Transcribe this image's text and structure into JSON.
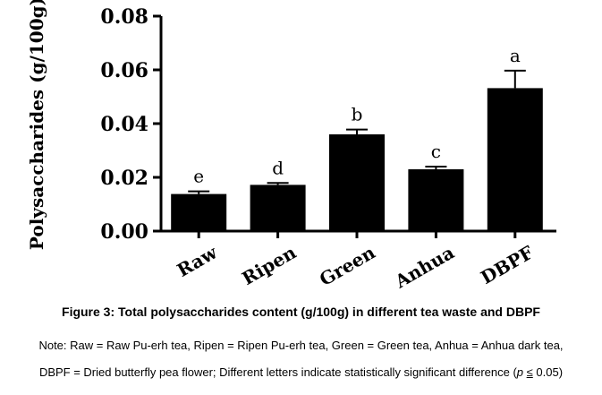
{
  "chart_data": {
    "type": "bar",
    "title": "",
    "ylabel": "Polysaccharides (g/100g)",
    "xlabel": "",
    "categories": [
      "Raw",
      "Ripen",
      "Green",
      "Anhua",
      "DBPF"
    ],
    "values": [
      0.0138,
      0.0172,
      0.036,
      0.023,
      0.0532
    ],
    "errors": [
      0.001,
      0.0007,
      0.0018,
      0.001,
      0.0065
    ],
    "significance": [
      "e",
      "d",
      "b",
      "c",
      "a"
    ],
    "ylim": [
      0,
      0.08
    ],
    "yticks": [
      "0.00",
      "0.02",
      "0.04",
      "0.06",
      "0.08"
    ],
    "bar_color": "#000000",
    "grid": false
  },
  "caption": "Figure 3: Total polysaccharides content (g/100g) in different tea waste and DBPF",
  "note": {
    "line1": "Note: Raw = Raw Pu-erh tea, Ripen = Ripen Pu-erh tea, Green = Green tea, Anhua = Anhua dark tea,",
    "line2_prefix": "DBPF = Dried butterfly pea flower; Different letters indicate statistically significant difference (",
    "p_symbol": "p",
    "le_symbol": "≤",
    "p_value": "0.05",
    "close_paren": ")"
  }
}
